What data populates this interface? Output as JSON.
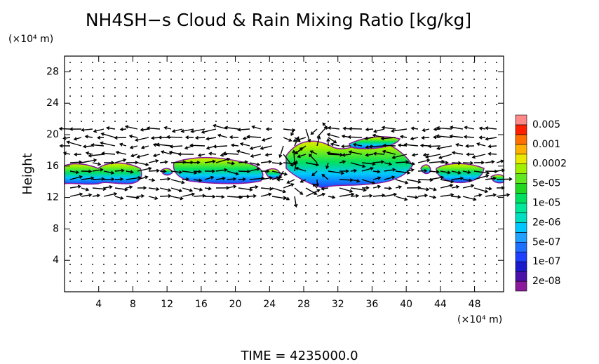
{
  "chart_data": {
    "type": "contour",
    "title": "NH4SH−s Cloud & Rain Mixing Ratio [kg/kg]",
    "y_unit": "(×10⁴ m)",
    "x_unit": "(×10⁴ m)",
    "ylabel": "Height",
    "footer": "TIME  =  4235000.0",
    "xlim": [
      0,
      51.4
    ],
    "ylim": [
      0,
      30
    ],
    "xticks": [
      4,
      8,
      12,
      16,
      20,
      24,
      28,
      32,
      36,
      40,
      44,
      48
    ],
    "yticks": [
      4,
      8,
      12,
      16,
      20,
      24,
      28
    ],
    "colorbar": {
      "levels": [
        {
          "value": 2e-08,
          "label": "2e-08"
        },
        {
          "value": 1e-07,
          "label": "1e-07"
        },
        {
          "value": 5e-07,
          "label": "5e-07"
        },
        {
          "value": 2e-06,
          "label": "2e-06"
        },
        {
          "value": 1e-05,
          "label": "1e-05"
        },
        {
          "value": 5e-05,
          "label": "5e-05"
        },
        {
          "value": 0.0002,
          "label": "0.0002"
        },
        {
          "value": 0.001,
          "label": "0.001"
        },
        {
          "value": 0.005,
          "label": "0.005"
        }
      ],
      "colors": [
        "#8a1a9a",
        "#4a10a8",
        "#1a1acc",
        "#1f3fff",
        "#1e6fff",
        "#20a0ff",
        "#00c8ff",
        "#00e0c0",
        "#00e89a",
        "#00e060",
        "#20d820",
        "#60e820",
        "#a0f000",
        "#e8e800",
        "#ffb000",
        "#ff7000",
        "#ff2000",
        "#ff8888"
      ]
    }
  }
}
